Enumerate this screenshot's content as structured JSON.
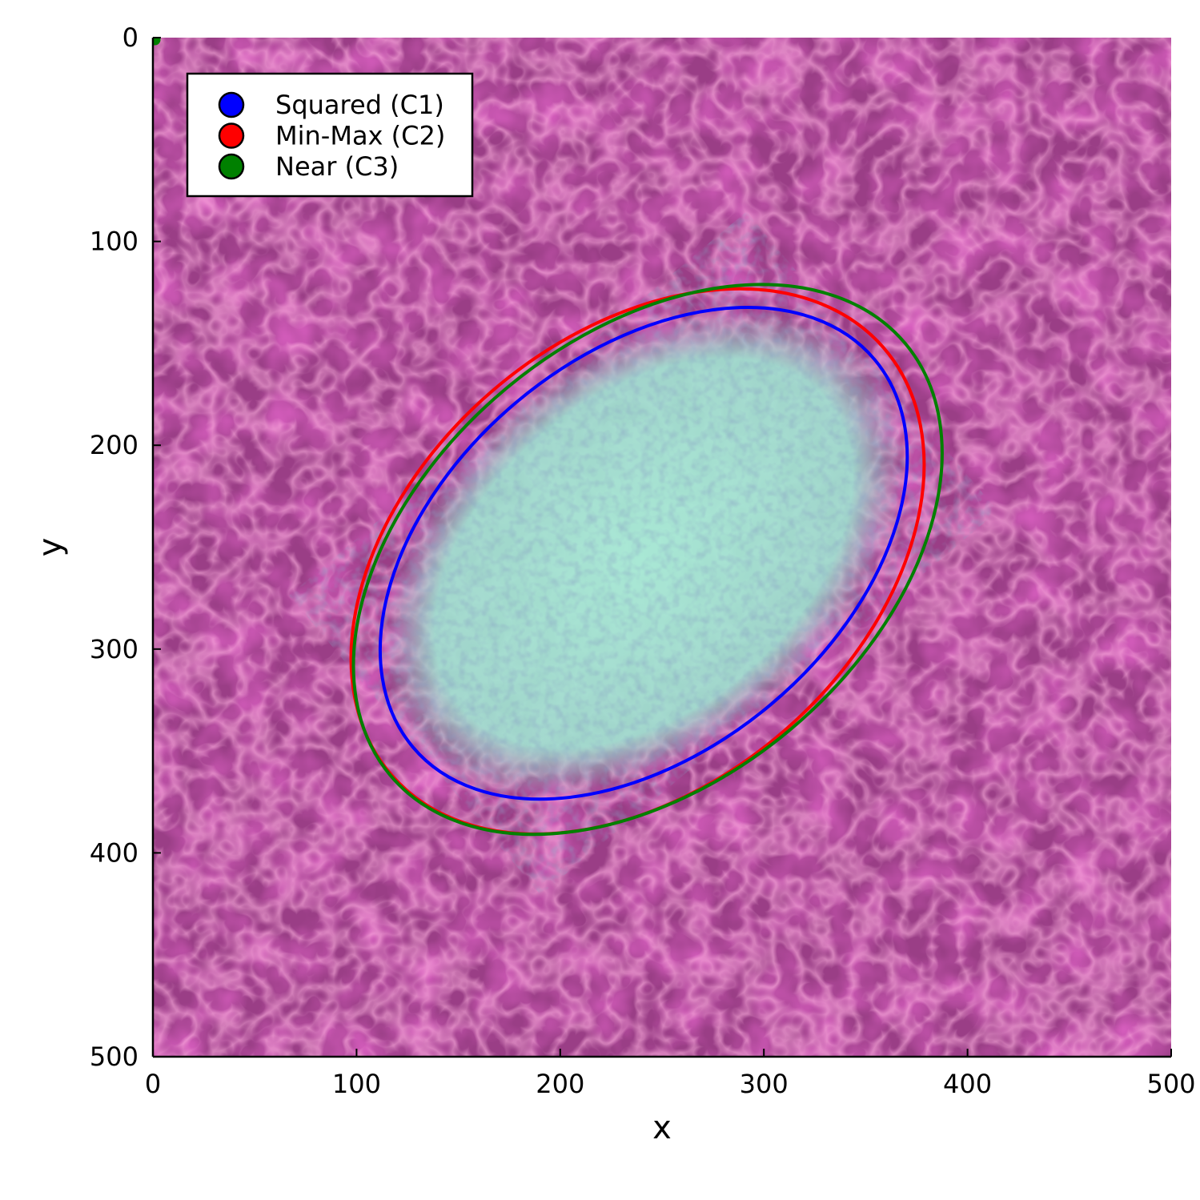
{
  "chart_data": {
    "type": "scatter",
    "background": "histology image (pink/purple tissue with pale cyan oval region)",
    "xlabel": "x",
    "ylabel": "y",
    "xlim": [
      0,
      500
    ],
    "ylim": [
      0,
      500
    ],
    "y_inverted": true,
    "x_ticks": [
      "0",
      "100",
      "200",
      "300",
      "400",
      "500"
    ],
    "y_ticks": [
      "0",
      "100",
      "200",
      "300",
      "400",
      "500"
    ],
    "legend_position": "top-left",
    "series": [
      {
        "name": "Squared (C1)",
        "color": "#0000ff",
        "shape": "ellipse",
        "cx": 241,
        "cy": 253,
        "rx": 148,
        "ry": 97,
        "angle_deg": -40
      },
      {
        "name": "Min-Max (C2)",
        "color": "#ff0000",
        "shape": "ellipse",
        "cx": 238,
        "cy": 257,
        "rx": 160,
        "ry": 110,
        "angle_deg": -41
      },
      {
        "name": "Near (C3)",
        "color": "#008000",
        "shape": "ellipse",
        "cx": 243,
        "cy": 256,
        "rx": 165,
        "ry": 109,
        "angle_deg": -40
      }
    ],
    "point": {
      "x": 1,
      "y": 1,
      "color": "#008000"
    }
  }
}
